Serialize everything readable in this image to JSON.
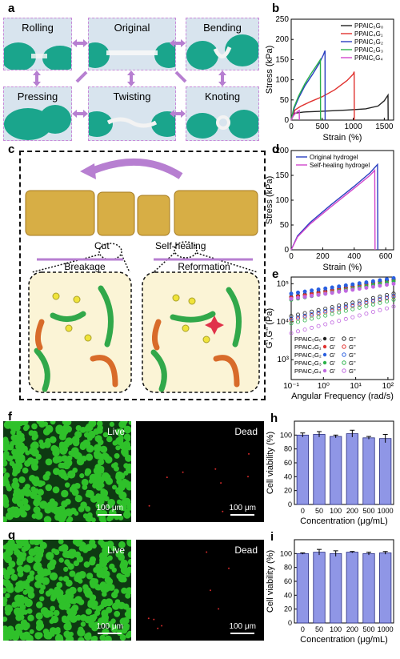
{
  "panel_labels": {
    "a": "a",
    "b": "b",
    "c": "c",
    "d": "d",
    "e": "e",
    "f": "f",
    "g": "g",
    "h": "h",
    "i": "i"
  },
  "panel_a": {
    "rolling": "Rolling",
    "original": "Original",
    "bending": "Bending",
    "pressing": "Pressing",
    "twisting": "Twisting",
    "knoting": "Knoting"
  },
  "panel_c": {
    "cut": "Cut",
    "breakage": "Breakage",
    "self_healing": "Self-healing",
    "reformation": "Reformation"
  },
  "panel_f": {
    "live": "Live",
    "dead": "Dead",
    "scale": "100 μm"
  },
  "panel_g": {
    "live": "Live",
    "dead": "Dead",
    "scale": "100 μm"
  },
  "colors": {
    "purple": "#b77fd1",
    "live_green": "#2fc12a",
    "bar_blue": "#8f96e6"
  },
  "chart_data": [
    {
      "id": "b",
      "type": "line",
      "xlabel": "Strain (%)",
      "ylabel": "Stress (kPa)",
      "xlim": [
        0,
        1650
      ],
      "ylim": [
        0,
        250
      ],
      "xticks": [
        0,
        500,
        1000,
        1500
      ],
      "yticks": [
        0,
        50,
        100,
        150,
        200,
        250
      ],
      "legend_position": "top-right",
      "series": [
        {
          "name": "PPAIC₅G₀",
          "color": "#222222",
          "x": [
            0,
            50,
            200,
            500,
            900,
            1200,
            1400,
            1500,
            1560,
            1562
          ],
          "y": [
            0,
            17,
            20,
            22,
            25,
            28,
            35,
            48,
            62,
            0
          ]
        },
        {
          "name": "PPAIC₄G₁",
          "color": "#e0322f",
          "x": [
            0,
            60,
            150,
            300,
            500,
            700,
            900,
            1000,
            1015,
            1017
          ],
          "y": [
            0,
            25,
            34,
            45,
            58,
            75,
            98,
            114,
            120,
            0
          ]
        },
        {
          "name": "PPAIC₃G₂",
          "color": "#2a3fc0",
          "x": [
            0,
            50,
            120,
            220,
            350,
            450,
            520,
            545,
            547
          ],
          "y": [
            0,
            30,
            55,
            85,
            115,
            140,
            162,
            172,
            0
          ]
        },
        {
          "name": "PPAIC₂G₃",
          "color": "#2bb24a",
          "x": [
            0,
            40,
            120,
            220,
            320,
            420,
            470,
            473
          ],
          "y": [
            0,
            30,
            60,
            90,
            115,
            138,
            150,
            0
          ]
        },
        {
          "name": "PPAIC₁G₄",
          "color": "#d146cc",
          "x": [
            0,
            30,
            70,
            110,
            130,
            132
          ],
          "y": [
            0,
            10,
            17,
            22,
            24,
            0
          ]
        }
      ]
    },
    {
      "id": "d",
      "type": "line",
      "xlabel": "Strain (%)",
      "ylabel": "Stress (kPa)",
      "xlim": [
        0,
        650
      ],
      "ylim": [
        0,
        200
      ],
      "xticks": [
        0,
        200,
        400,
        600
      ],
      "yticks": [
        0,
        50,
        100,
        150,
        200
      ],
      "legend_position": "top-left",
      "series": [
        {
          "name": "Original hydrogel",
          "color": "#2a3fc0",
          "x": [
            0,
            40,
            120,
            250,
            400,
            500,
            548,
            550
          ],
          "y": [
            0,
            28,
            55,
            90,
            128,
            155,
            172,
            0
          ]
        },
        {
          "name": "Self-healing hydrogel",
          "color": "#d146cc",
          "x": [
            0,
            40,
            120,
            250,
            400,
            500,
            530,
            532
          ],
          "y": [
            0,
            26,
            52,
            86,
            124,
            150,
            160,
            0
          ]
        }
      ]
    },
    {
      "id": "e",
      "type": "scatter",
      "xlabel": "Angular Frequency (rad/s)",
      "ylabel": "G',G'' (Pa)",
      "xscale": "log",
      "yscale": "log",
      "xlim": [
        0.1,
        150
      ],
      "ylim": [
        300,
        150000
      ],
      "xticks": [
        0.1,
        1,
        10,
        100
      ],
      "xticklabels": [
        "10⁻¹",
        "10⁰",
        "10¹",
        "10²"
      ],
      "yticks": [
        1000,
        10000,
        100000
      ],
      "yticklabels": [
        "10³",
        "10⁴",
        "10⁵"
      ],
      "legend_position": "bottom-left",
      "legend": [
        {
          "name": "PPAIC₅G₀",
          "gp": "G'",
          "gpp": "G''",
          "color": "#222222"
        },
        {
          "name": "PPAIC₄G₁",
          "gp": "G'",
          "gpp": "G''",
          "color": "#e0322f"
        },
        {
          "name": "PPAIC₃G₂",
          "gp": "G'",
          "gpp": "G''",
          "color": "#2a5fe0"
        },
        {
          "name": "PPAIC₂G₃",
          "gp": "G'",
          "gpp": "G''",
          "color": "#2bb24a"
        },
        {
          "name": "PPAIC₁G₄",
          "gp": "G'",
          "gpp": "G''",
          "color": "#c068e0"
        }
      ],
      "series": [
        {
          "name": "PPAIC₅G₀ G'",
          "color": "#222222",
          "filled": true,
          "ystart": 45000,
          "yend": 130000
        },
        {
          "name": "PPAIC₄G₁ G'",
          "color": "#e0322f",
          "filled": true,
          "ystart": 43000,
          "yend": 120000
        },
        {
          "name": "PPAIC₃G₂ G'",
          "color": "#2a5fe0",
          "filled": true,
          "ystart": 55000,
          "yend": 140000
        },
        {
          "name": "PPAIC₂G₃ G'",
          "color": "#2bb24a",
          "filled": true,
          "ystart": 38000,
          "yend": 115000
        },
        {
          "name": "PPAIC₁G₄ G'",
          "color": "#c068e0",
          "filled": true,
          "ystart": 40000,
          "yend": 100000
        },
        {
          "name": "PPAIC₅G₀ G''",
          "color": "#222222",
          "filled": false,
          "ystart": 14000,
          "yend": 55000
        },
        {
          "name": "PPAIC₄G₁ G''",
          "color": "#e0322f",
          "filled": false,
          "ystart": 11000,
          "yend": 45000
        },
        {
          "name": "PPAIC₃G₂ G''",
          "color": "#2a5fe0",
          "filled": false,
          "ystart": 12000,
          "yend": 48000
        },
        {
          "name": "PPAIC₂G₃ G''",
          "color": "#2bb24a",
          "filled": false,
          "ystart": 9000,
          "yend": 38000
        },
        {
          "name": "PPAIC₁G₄ G''",
          "color": "#c068e0",
          "filled": false,
          "ystart": 5000,
          "yend": 25000
        }
      ]
    },
    {
      "id": "h",
      "type": "bar",
      "xlabel": "Concentration (μg/mL)",
      "ylabel": "Cell viability (%)",
      "categories": [
        "0",
        "50",
        "100",
        "200",
        "500",
        "1000"
      ],
      "values": [
        100,
        101,
        98,
        102,
        96,
        95
      ],
      "errors": [
        3,
        4,
        2,
        5,
        2,
        6
      ],
      "ylim": [
        0,
        120
      ],
      "yticks": [
        0,
        20,
        40,
        60,
        80,
        100
      ]
    },
    {
      "id": "i",
      "type": "bar",
      "xlabel": "Concentration (μg/mL)",
      "ylabel": "Cell viability (%)",
      "categories": [
        "0",
        "50",
        "100",
        "200",
        "500",
        "1000"
      ],
      "values": [
        100,
        102,
        100,
        102,
        100,
        101
      ],
      "errors": [
        1,
        4,
        4,
        1,
        2,
        2
      ],
      "ylim": [
        0,
        120
      ],
      "yticks": [
        0,
        20,
        40,
        60,
        80,
        100
      ]
    }
  ]
}
